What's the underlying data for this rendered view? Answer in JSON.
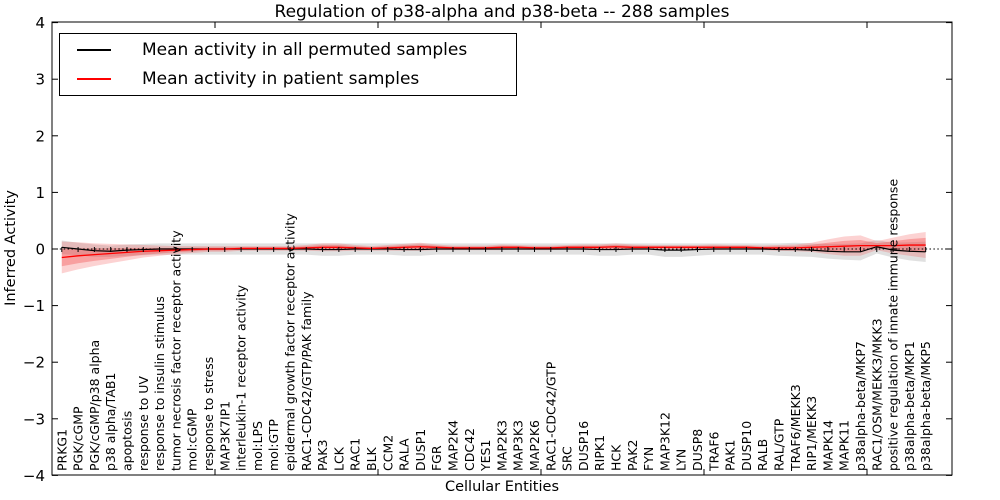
{
  "title": "Regulation of p38-alpha and p38-beta -- 288 samples",
  "legend": {
    "items": [
      {
        "label": "Mean activity in all permuted samples",
        "color": "#000000"
      },
      {
        "label": "Mean activity in patient samples",
        "color": "#ff0000"
      }
    ]
  },
  "axes": {
    "xlabel": "Cellular Entities",
    "ylabel": "Inferred Activity"
  },
  "chart_data": {
    "type": "line",
    "title": "Regulation of p38-alpha and p38-beta -- 288 samples",
    "xlabel": "Cellular Entities",
    "ylabel": "Inferred Activity",
    "ylim": [
      -4,
      4
    ],
    "grid": false,
    "legend_position": "upper left",
    "yticks": {
      "values": [
        4,
        3,
        2,
        1,
        0,
        -1,
        -2,
        -3,
        -4
      ],
      "labels": [
        "4",
        "3",
        "2",
        "1",
        "0",
        "−1",
        "−2",
        "−3",
        "−4"
      ]
    },
    "xtick_index_positions": [
      10,
      20,
      30,
      40,
      50
    ],
    "zero_line": 0,
    "categories": [
      "PRKG1",
      "PGK/cGMP",
      "PGK/cGMP/p38 alpha",
      "p38 alpha/TAB1",
      "apoptosis",
      "response to UV",
      "response to insulin stimulus",
      "tumor necrosis factor receptor activity",
      "mol:cGMP",
      "response to stress",
      "MAP3K7IP1",
      "interleukin-1 receptor activity",
      "mol:LPS",
      "mol:GTP",
      "epidermal growth factor receptor activity",
      "RAC1-CDC42/GTP/PAK family",
      "PAK3",
      "LCK",
      "RAC1",
      "BLK",
      "CCM2",
      "RALA",
      "DUSP1",
      "FGR",
      "MAP2K4",
      "CDC42",
      "YES1",
      "MAP2K3",
      "MAP3K3",
      "MAP2K6",
      "RAC1-CDC42/GTP",
      "SRC",
      "DUSP16",
      "RIPK1",
      "HCK",
      "PAK2",
      "FYN",
      "MAP3K12",
      "LYN",
      "DUSP8",
      "TRAF6",
      "PAK1",
      "DUSP10",
      "RALB",
      "RAL/GTP",
      "TRAF6/MEKK3",
      "RIP1/MEKK3",
      "MAPK14",
      "MAPK11",
      "p38alpha-beta/MKP7",
      "RAC1/OSM/MEKK3/MKK3",
      "positive regulation of innate immune response",
      "p38alpha-beta/MKP1",
      "p38alpha-beta/MKP5"
    ],
    "series": [
      {
        "name": "Mean activity in all permuted samples",
        "color": "#000000",
        "band_color": "#999999",
        "values": [
          0.03,
          0.0,
          -0.03,
          -0.04,
          -0.02,
          -0.01,
          0.0,
          0.0,
          0.0,
          0.0,
          0.0,
          0.0,
          0.0,
          0.0,
          0.0,
          0.0,
          -0.01,
          -0.01,
          0.0,
          0.0,
          0.0,
          -0.01,
          -0.01,
          0.0,
          0.0,
          0.0,
          0.0,
          0.0,
          0.0,
          0.0,
          0.0,
          0.0,
          0.0,
          -0.01,
          -0.01,
          0.0,
          0.0,
          -0.02,
          -0.02,
          -0.01,
          0.0,
          0.0,
          0.0,
          0.0,
          -0.01,
          -0.01,
          -0.02,
          -0.04,
          -0.05,
          -0.05,
          0.04,
          -0.02,
          -0.04,
          -0.05
        ],
        "band_halfwidth": [
          0.12,
          0.11,
          0.11,
          0.1,
          0.1,
          0.1,
          0.1,
          0.1,
          0.1,
          0.1,
          0.1,
          0.1,
          0.1,
          0.1,
          0.1,
          0.1,
          0.11,
          0.11,
          0.1,
          0.1,
          0.1,
          0.11,
          0.11,
          0.1,
          0.1,
          0.1,
          0.1,
          0.1,
          0.1,
          0.1,
          0.1,
          0.1,
          0.1,
          0.11,
          0.11,
          0.1,
          0.1,
          0.12,
          0.12,
          0.11,
          0.1,
          0.1,
          0.1,
          0.1,
          0.11,
          0.12,
          0.12,
          0.13,
          0.14,
          0.15,
          0.12,
          0.13,
          0.16,
          0.18
        ]
      },
      {
        "name": "Mean activity in patient samples",
        "color": "#ff0000",
        "band_color": "#f03030",
        "values": [
          -0.15,
          -0.12,
          -0.1,
          -0.08,
          -0.06,
          -0.04,
          -0.03,
          -0.02,
          -0.01,
          0.0,
          0.0,
          0.01,
          0.01,
          0.01,
          0.01,
          0.02,
          0.03,
          0.03,
          0.02,
          0.01,
          0.02,
          0.03,
          0.04,
          0.03,
          0.02,
          0.02,
          0.02,
          0.03,
          0.03,
          0.02,
          0.02,
          0.03,
          0.03,
          0.03,
          0.04,
          0.03,
          0.03,
          0.03,
          0.03,
          0.03,
          0.03,
          0.03,
          0.03,
          0.02,
          0.02,
          0.02,
          0.03,
          0.04,
          0.05,
          0.06,
          0.06,
          0.06,
          0.07,
          0.07
        ],
        "band_halfwidth": [
          0.28,
          0.24,
          0.2,
          0.17,
          0.14,
          0.11,
          0.09,
          0.07,
          0.06,
          0.05,
          0.05,
          0.04,
          0.04,
          0.04,
          0.04,
          0.05,
          0.07,
          0.07,
          0.05,
          0.04,
          0.05,
          0.06,
          0.07,
          0.05,
          0.04,
          0.04,
          0.04,
          0.05,
          0.04,
          0.04,
          0.04,
          0.04,
          0.05,
          0.05,
          0.06,
          0.05,
          0.04,
          0.04,
          0.04,
          0.04,
          0.05,
          0.04,
          0.04,
          0.04,
          0.05,
          0.06,
          0.08,
          0.13,
          0.17,
          0.18,
          0.08,
          0.14,
          0.19,
          0.23
        ]
      }
    ]
  }
}
